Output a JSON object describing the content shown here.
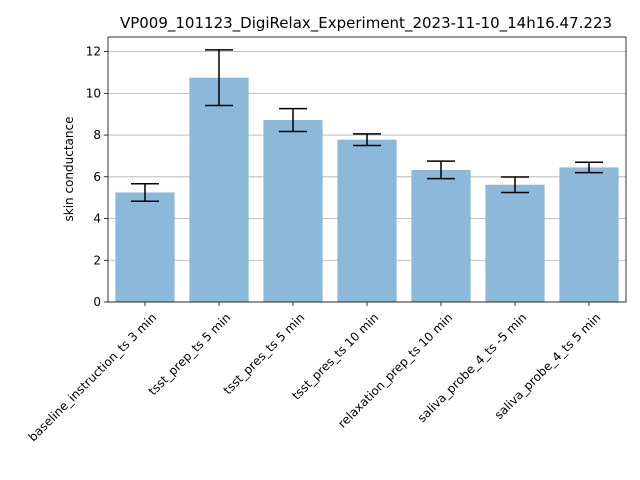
{
  "chart_data": {
    "type": "bar",
    "title": "VP009_101123_DigiRelax_Experiment_2023-11-10_14h16.47.223",
    "xlabel": "",
    "ylabel": "skin conductance",
    "categories": [
      "baseline_instruction_ts 3 min",
      "tsst_prep_ts 5 min",
      "tsst_pres_ts 5 min",
      "tsst_pres_ts 10 min",
      "relaxation_prep_ts 10 min",
      "saliva_probe_4_ts -5 min",
      "saliva_probe_4_ts 5 min"
    ],
    "values": [
      5.25,
      10.75,
      8.72,
      7.78,
      6.33,
      5.62,
      6.45
    ],
    "error": [
      0.42,
      1.33,
      0.55,
      0.28,
      0.42,
      0.37,
      0.25
    ],
    "ylim": [
      0,
      12.7
    ],
    "yticks": [
      0,
      2,
      4,
      6,
      8,
      10,
      12
    ],
    "grid": "horizontal",
    "colors": {
      "bar": "#8cb8d9",
      "grid": "#b0b0b0",
      "axis": "#000000",
      "errorbar": "#000000"
    }
  }
}
